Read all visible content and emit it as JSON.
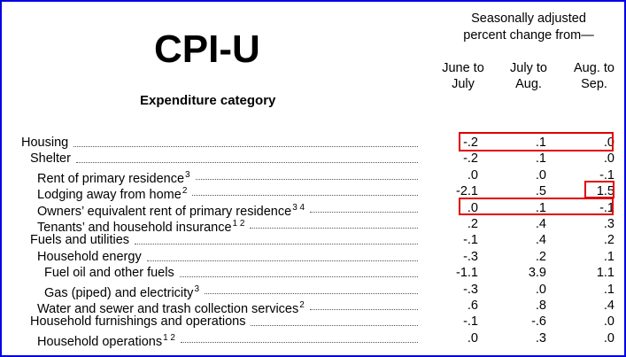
{
  "title": "CPI-U",
  "subtitle": "Expenditure category",
  "column_group": [
    "Seasonally adjusted",
    "percent change from—"
  ],
  "columns": [
    [
      "June to",
      "July"
    ],
    [
      "July to",
      "Aug."
    ],
    [
      "Aug. to",
      "Sep."
    ]
  ],
  "rows": [
    {
      "label": "Housing",
      "sup": "",
      "values": [
        "-.2",
        ".1",
        ".0"
      ]
    },
    {
      "label": "Shelter",
      "sup": "",
      "values": [
        "-.2",
        ".1",
        ".0"
      ]
    },
    {
      "label": "Rent of primary residence",
      "sup": "3",
      "values": [
        ".0",
        ".0",
        "-.1"
      ]
    },
    {
      "label": "Lodging away from home",
      "sup": "2",
      "values": [
        "-2.1",
        ".5",
        "1.5"
      ]
    },
    {
      "label": "Owners’ equivalent rent of primary residence",
      "sup": "3 4",
      "values": [
        ".0",
        ".1",
        "-.1"
      ]
    },
    {
      "label": "Tenants’ and household insurance",
      "sup": "1 2",
      "values": [
        ".2",
        ".4",
        ".3"
      ]
    },
    {
      "label": "Fuels and utilities",
      "sup": "",
      "values": [
        "-.1",
        ".4",
        ".2"
      ]
    },
    {
      "label": "Household energy",
      "sup": "",
      "values": [
        "-.3",
        ".2",
        ".1"
      ]
    },
    {
      "label": "Fuel oil and other fuels",
      "sup": "",
      "values": [
        "-1.1",
        "3.9",
        "1.1"
      ]
    },
    {
      "label": "Gas (piped) and electricity",
      "sup": "3",
      "values": [
        "-.3",
        ".0",
        ".1"
      ]
    },
    {
      "label": "Water and sewer and trash collection services",
      "sup": "2",
      "values": [
        ".6",
        ".8",
        ".4"
      ]
    },
    {
      "label": "Household furnishings and operations",
      "sup": "",
      "values": [
        "-.1",
        "-.6",
        ".0"
      ]
    },
    {
      "label": "Household operations",
      "sup": "1 2",
      "values": [
        ".0",
        ".3",
        ".0"
      ]
    }
  ],
  "highlight_color": "#e00000",
  "border_color": "#0000e6"
}
